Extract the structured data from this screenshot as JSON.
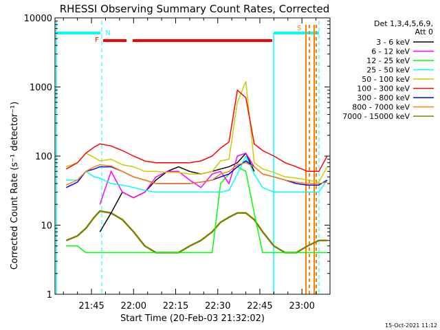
{
  "chart_data": {
    "type": "line",
    "title": "RHESSI Observing Summary Count Rates, Corrected",
    "xlabel": "Start Time (20-Feb-03 21:32:02)",
    "ylabel": "Corrected Count Rate (s⁻¹ detector⁻¹)",
    "y_scale": "log",
    "ylim": [
      1,
      10000
    ],
    "xlim": [
      "21:32",
      "23:10"
    ],
    "x_ticks": [
      "21:45",
      "22:00",
      "22:15",
      "22:30",
      "22:45",
      "23:00"
    ],
    "y_ticks": [
      "1",
      "10",
      "100",
      "1000",
      "10000"
    ],
    "footer": "15-Oct-2021 11:12",
    "legend": {
      "placement": "right",
      "header": [
        "Det 1,3,4,5,6,9,",
        "Att 0"
      ]
    },
    "flag_labels": [
      "N",
      "F",
      "S"
    ],
    "x": [
      "21:36",
      "21:40",
      "21:43",
      "21:46",
      "21:48",
      "21:52",
      "21:56",
      "22:00",
      "22:04",
      "22:08",
      "22:12",
      "22:16",
      "22:20",
      "22:24",
      "22:28",
      "22:31",
      "22:34",
      "22:37",
      "22:40",
      "22:43",
      "22:46",
      "22:50",
      "22:54",
      "22:58",
      "23:02",
      "23:06",
      "23:09"
    ],
    "series": [
      {
        "name": "3 - 6 keV",
        "color": "#000000",
        "values": [
          null,
          null,
          null,
          null,
          8,
          15,
          30,
          25,
          30,
          45,
          60,
          70,
          60,
          55,
          60,
          65,
          70,
          80,
          110,
          60,
          null,
          null,
          null,
          null,
          null,
          null,
          null
        ]
      },
      {
        "name": "6 - 12 keV",
        "color": "#ff00ff",
        "values": [
          null,
          null,
          null,
          null,
          20,
          60,
          30,
          25,
          30,
          50,
          60,
          60,
          45,
          35,
          55,
          60,
          40,
          100,
          110,
          70,
          null,
          null,
          null,
          null,
          null,
          null,
          null
        ]
      },
      {
        "name": "12 - 25 keV",
        "color": "#00ff00",
        "values": [
          5,
          5,
          4,
          4,
          4,
          4,
          4,
          4,
          4,
          4,
          4,
          4,
          4,
          4,
          4,
          40,
          55,
          70,
          60,
          15,
          4,
          4,
          4,
          4,
          4,
          4,
          4
        ]
      },
      {
        "name": "25 - 50 keV",
        "color": "#00ffff",
        "values": [
          45,
          45,
          60,
          50,
          48,
          40,
          38,
          35,
          32,
          30,
          30,
          30,
          30,
          30,
          30,
          30,
          32,
          55,
          100,
          55,
          35,
          30,
          30,
          30,
          30,
          30,
          45
        ]
      },
      {
        "name": "50 - 100 keV",
        "color": "#cccc00",
        "values": [
          70,
          80,
          110,
          95,
          85,
          90,
          75,
          70,
          60,
          60,
          58,
          58,
          55,
          55,
          60,
          85,
          90,
          600,
          1200,
          80,
          65,
          58,
          50,
          48,
          45,
          42,
          70
        ]
      },
      {
        "name": "100 - 300 keV",
        "color": "#ff0000",
        "values": [
          65,
          80,
          110,
          135,
          150,
          140,
          120,
          100,
          85,
          80,
          80,
          80,
          80,
          85,
          100,
          130,
          160,
          900,
          700,
          150,
          120,
          100,
          80,
          70,
          60,
          60,
          100
        ]
      },
      {
        "name": "300 - 800 keV",
        "color": "#0000ff",
        "values": [
          35,
          42,
          60,
          65,
          70,
          70,
          60,
          50,
          45,
          40,
          40,
          40,
          40,
          42,
          45,
          50,
          55,
          70,
          85,
          70,
          55,
          50,
          45,
          40,
          38,
          38,
          45
        ]
      },
      {
        "name": "800 - 7000 keV",
        "color": "#ff8000",
        "values": [
          38,
          45,
          60,
          70,
          75,
          72,
          60,
          50,
          45,
          40,
          40,
          40,
          40,
          42,
          45,
          55,
          60,
          75,
          80,
          70,
          55,
          50,
          45,
          42,
          40,
          40,
          42
        ]
      },
      {
        "name": "7000 - 15000 keV",
        "color": "#808000",
        "values": [
          6,
          7,
          9,
          13,
          16,
          15,
          12,
          8,
          5,
          4,
          4,
          4,
          5,
          6,
          8,
          11,
          13,
          15,
          15,
          12,
          8,
          5,
          4,
          4,
          5,
          6,
          6
        ]
      }
    ]
  }
}
